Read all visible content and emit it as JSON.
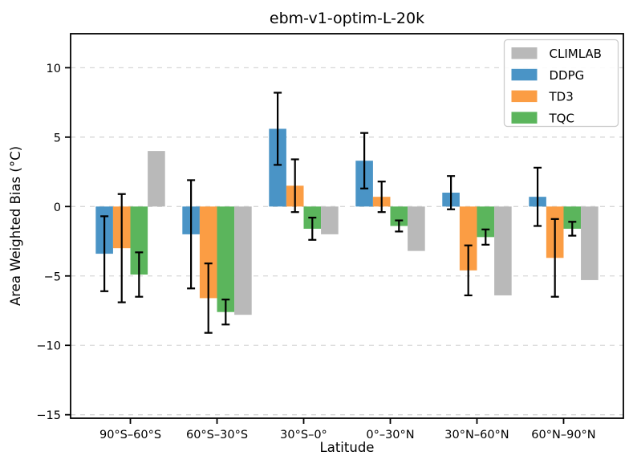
{
  "chart_data": {
    "type": "bar",
    "title": "ebm-v1-optim-L-20k",
    "xlabel": "Latitude",
    "ylabel": "Area Weighted Bias (°C)",
    "categories": [
      "90°S–60°S",
      "60°S–30°S",
      "30°S–0°",
      "0°–30°N",
      "30°N–60°N",
      "60°N–90°N"
    ],
    "series": [
      {
        "name": "DDPG",
        "color": "#4a94c6",
        "values": [
          -3.4,
          -2.0,
          5.6,
          3.3,
          1.0,
          0.7
        ],
        "errors": [
          2.7,
          3.9,
          2.6,
          2.0,
          1.2,
          2.1
        ]
      },
      {
        "name": "TD3",
        "color": "#fb9d44",
        "values": [
          -3.0,
          -6.6,
          1.5,
          0.7,
          -4.6,
          -3.7
        ],
        "errors": [
          3.9,
          2.5,
          1.9,
          1.1,
          1.8,
          2.8
        ]
      },
      {
        "name": "TQC",
        "color": "#5bb55c",
        "values": [
          -4.9,
          -7.6,
          -1.6,
          -1.4,
          -2.2,
          -1.6
        ],
        "errors": [
          1.6,
          0.9,
          0.8,
          0.4,
          0.55,
          0.5
        ]
      },
      {
        "name": "CLIMLAB",
        "color": "#b9b9b9",
        "values": [
          4.0,
          -7.8,
          -2.0,
          -3.2,
          -6.4,
          -5.3
        ],
        "errors": null
      }
    ],
    "legend": {
      "position": "upper right",
      "entries": [
        "CLIMLAB",
        "DDPG",
        "TD3",
        "TQC"
      ]
    },
    "ylim": [
      -15.25,
      12.45
    ],
    "yticks": [
      10,
      5,
      0,
      -5,
      -10,
      -15
    ],
    "ytick_labels": [
      "10",
      "5",
      "0",
      "−5",
      "−10",
      "−15"
    ],
    "grid": true,
    "grid_style": "dashed",
    "bar_width": 0.2,
    "colors": {
      "error_bar": "#000000",
      "grid_line": "#d7d7d7",
      "spine": "#000000",
      "legend_border": "#cccccc",
      "legend_background": "#ffffff"
    }
  }
}
